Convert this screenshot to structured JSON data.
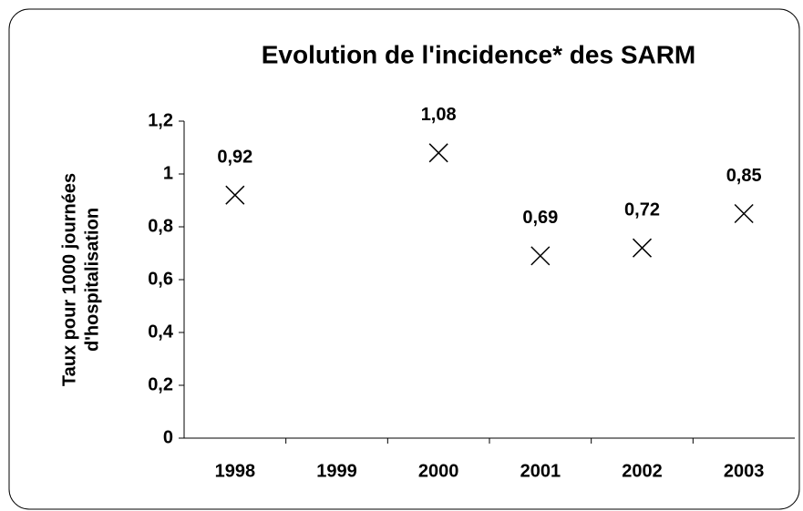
{
  "chart_data": {
    "type": "scatter",
    "title": "Evolution de l'incidence* des SARM",
    "ylabel": [
      "Taux pour 1000 journées",
      "d'hospitalisation"
    ],
    "categories": [
      "1998",
      "1999",
      "2000",
      "2001",
      "2002",
      "2003"
    ],
    "values": [
      0.92,
      null,
      1.08,
      0.69,
      0.72,
      0.85
    ],
    "value_labels": [
      "0,92",
      null,
      "1,08",
      "0,69",
      "0,72",
      "0,85"
    ],
    "color": "#000000",
    "marker": "x",
    "ylim": [
      0,
      1.2
    ],
    "yticks": [
      0,
      {
        "value": 0.2,
        "label": "0,2"
      },
      {
        "value": 0.4,
        "label": "0,4"
      },
      {
        "value": 0.6,
        "label": "0,6"
      },
      {
        "value": 0.8,
        "label": "0,8"
      },
      1,
      {
        "value": 1.2,
        "label": "1,2"
      }
    ],
    "grid": false
  }
}
